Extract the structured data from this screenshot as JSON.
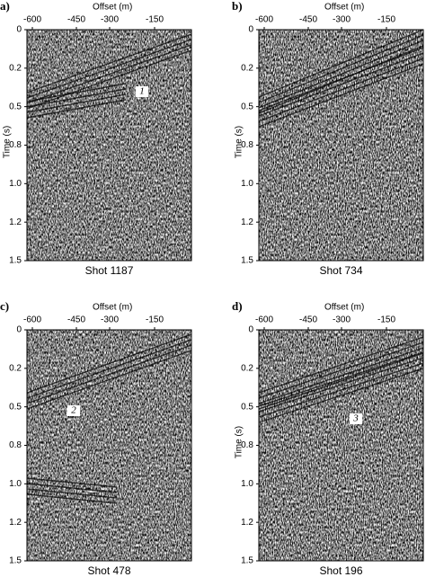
{
  "panels": [
    {
      "label": "a)",
      "x_axis_title": "Offset (m)",
      "x_ticks": [
        "-600",
        "-450",
        "-300",
        "-150"
      ],
      "y_axis_title": "Time (s)",
      "y_ticks": [
        "0",
        "0.2",
        "0.5",
        "0.8",
        "1.0",
        "1.2",
        "1.5"
      ],
      "caption": "Shot 1187",
      "annotation": "1"
    },
    {
      "label": "b)",
      "x_axis_title": "Offset (m)",
      "x_ticks": [
        "-600",
        "-450",
        "-300",
        "-150"
      ],
      "y_axis_title": "Time (s)",
      "y_ticks": [
        "0",
        "0.2",
        "0.5",
        "0.8",
        "1.0",
        "1.2",
        "1.5"
      ],
      "caption": "Shot 734"
    },
    {
      "label": "c)",
      "x_axis_title": "Offset (m)",
      "x_ticks": [
        "-600",
        "-450",
        "-300",
        "-150"
      ],
      "y_ticks": [
        "0",
        "0.2",
        "0.5",
        "0.8",
        "1.0",
        "1.2",
        "1.5"
      ],
      "caption": "Shot 478",
      "annotation": "2"
    },
    {
      "label": "d)",
      "x_axis_title": "Offset (m)",
      "x_ticks": [
        "-600",
        "-450",
        "-300",
        "-150"
      ],
      "y_axis_title": "Time (s)",
      "y_ticks": [
        "0",
        "0.2",
        "0.5",
        "0.8",
        "1.0",
        "1.2",
        "1.5"
      ],
      "caption": "Shot 196",
      "annotation": "3"
    }
  ]
}
